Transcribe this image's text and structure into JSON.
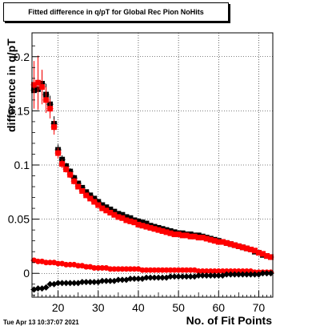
{
  "title": "Fitted difference in q/pT for Global Rec Pion NoHits",
  "timestamp": "Tue Apr 13 10:37:07 2021",
  "chart_data": {
    "type": "scatter",
    "xlabel": "No. of Fit Points",
    "ylabel": "difference in q/pT",
    "xlim": [
      13.5,
      73.5
    ],
    "ylim": [
      -0.022,
      0.222
    ],
    "xticks": [
      20,
      30,
      40,
      50,
      60,
      70
    ],
    "yticks": [
      0,
      0.05,
      0.1,
      0.15,
      0.2
    ],
    "xtick_labels": [
      "20",
      "30",
      "40",
      "50",
      "60",
      "70"
    ],
    "ytick_labels": [
      "0",
      "0.05",
      "0.1",
      "0.15",
      "0.2"
    ],
    "grid": true,
    "series": [
      {
        "color": "#000000",
        "marker": "square",
        "x": [
          14,
          15,
          16,
          17,
          18,
          19,
          20,
          21,
          22,
          23,
          24,
          25,
          26,
          27,
          28,
          29,
          30,
          31,
          32,
          33,
          34,
          35,
          36,
          37,
          38,
          39,
          40,
          41,
          42,
          43,
          44,
          45,
          46,
          47,
          48,
          49,
          50,
          51,
          52,
          53,
          54,
          55,
          56,
          57,
          58,
          59,
          60,
          61,
          62,
          63,
          64,
          65,
          66,
          67,
          68,
          69,
          70,
          71,
          72,
          73
        ],
        "y": [
          0.169,
          0.17,
          0.175,
          0.165,
          0.156,
          0.138,
          0.114,
          0.105,
          0.099,
          0.094,
          0.088,
          0.083,
          0.079,
          0.075,
          0.072,
          0.069,
          0.066,
          0.063,
          0.061,
          0.059,
          0.057,
          0.055,
          0.054,
          0.052,
          0.051,
          0.049,
          0.048,
          0.047,
          0.046,
          0.044,
          0.043,
          0.042,
          0.041,
          0.04,
          0.039,
          0.038,
          0.037,
          0.037,
          0.036,
          0.036,
          0.035,
          0.035,
          0.034,
          0.033,
          0.032,
          0.031,
          0.03,
          0.029,
          0.028,
          0.027,
          0.026,
          0.025,
          0.024,
          0.023,
          0.022,
          0.02,
          0.019,
          0.017,
          0.016,
          0.015
        ],
        "yerr": [
          0.014,
          0.018,
          0.012,
          0.01,
          0.008,
          0.007,
          0.005,
          0.004,
          0.003,
          0.003,
          0.003,
          0.002,
          0.002,
          0.002,
          0.002,
          0.002,
          0.002,
          0.002,
          0.002,
          0.002,
          0.002,
          0.002,
          0.002,
          0.002,
          0.002,
          0.002,
          0.002,
          0.002,
          0.002,
          0.002,
          0.002,
          0.002,
          0.002,
          0.002,
          0.002,
          0.002,
          0.002,
          0.002,
          0.002,
          0.002,
          0.002,
          0.002,
          0.002,
          0.002,
          0.002,
          0.002,
          0.002,
          0.002,
          0.002,
          0.002,
          0.002,
          0.002,
          0.002,
          0.002,
          0.002,
          0.002,
          0.002,
          0.002,
          0.002,
          0.002
        ]
      },
      {
        "color": "#ff0000",
        "marker": "square",
        "x": [
          14,
          15,
          16,
          17,
          18,
          19,
          20,
          21,
          22,
          23,
          24,
          25,
          26,
          27,
          28,
          29,
          30,
          31,
          32,
          33,
          34,
          35,
          36,
          37,
          38,
          39,
          40,
          41,
          42,
          43,
          44,
          45,
          46,
          47,
          48,
          49,
          50,
          51,
          52,
          53,
          54,
          55,
          56,
          57,
          58,
          59,
          60,
          61,
          62,
          63,
          64,
          65,
          66,
          67,
          68,
          69,
          70,
          71,
          72,
          73
        ],
        "y": [
          0.174,
          0.176,
          0.172,
          0.16,
          0.152,
          0.135,
          0.111,
          0.101,
          0.096,
          0.091,
          0.085,
          0.08,
          0.076,
          0.072,
          0.069,
          0.066,
          0.063,
          0.06,
          0.058,
          0.056,
          0.054,
          0.052,
          0.051,
          0.049,
          0.048,
          0.047,
          0.045,
          0.044,
          0.043,
          0.042,
          0.041,
          0.04,
          0.039,
          0.038,
          0.037,
          0.036,
          0.036,
          0.035,
          0.035,
          0.034,
          0.034,
          0.033,
          0.033,
          0.032,
          0.031,
          0.03,
          0.029,
          0.029,
          0.028,
          0.027,
          0.026,
          0.025,
          0.024,
          0.023,
          0.022,
          0.021,
          0.019,
          0.018,
          0.016,
          0.015
        ],
        "yerr": [
          0.022,
          0.025,
          0.016,
          0.012,
          0.009,
          0.007,
          0.005,
          0.004,
          0.003,
          0.003,
          0.003,
          0.002,
          0.002,
          0.002,
          0.002,
          0.002,
          0.002,
          0.002,
          0.002,
          0.002,
          0.002,
          0.002,
          0.002,
          0.002,
          0.002,
          0.002,
          0.002,
          0.002,
          0.002,
          0.002,
          0.002,
          0.002,
          0.002,
          0.002,
          0.002,
          0.002,
          0.002,
          0.002,
          0.002,
          0.002,
          0.002,
          0.002,
          0.002,
          0.002,
          0.002,
          0.002,
          0.002,
          0.002,
          0.002,
          0.002,
          0.002,
          0.002,
          0.002,
          0.002,
          0.002,
          0.002,
          0.002,
          0.002,
          0.002,
          0.002
        ]
      },
      {
        "color": "#ff0000",
        "marker": "circle",
        "x": [
          14,
          15,
          16,
          17,
          18,
          19,
          20,
          21,
          22,
          23,
          24,
          25,
          26,
          27,
          28,
          29,
          30,
          31,
          32,
          33,
          34,
          35,
          36,
          37,
          38,
          39,
          40,
          41,
          42,
          43,
          44,
          45,
          46,
          47,
          48,
          49,
          50,
          51,
          52,
          53,
          54,
          55,
          56,
          57,
          58,
          59,
          60,
          61,
          62,
          63,
          64,
          65,
          66,
          67,
          68,
          69,
          70,
          71,
          72,
          73
        ],
        "y": [
          0.012,
          0.011,
          0.011,
          0.01,
          0.01,
          0.01,
          0.009,
          0.009,
          0.008,
          0.008,
          0.008,
          0.007,
          0.007,
          0.006,
          0.006,
          0.005,
          0.005,
          0.005,
          0.005,
          0.004,
          0.004,
          0.004,
          0.004,
          0.004,
          0.004,
          0.004,
          0.004,
          0.003,
          0.003,
          0.003,
          0.003,
          0.003,
          0.003,
          0.003,
          0.003,
          0.003,
          0.003,
          0.003,
          0.003,
          0.003,
          0.003,
          0.002,
          0.002,
          0.002,
          0.002,
          0.002,
          0.002,
          0.002,
          0.002,
          0.002,
          0.002,
          0.002,
          0.002,
          0.002,
          0.002,
          0.001,
          0.001,
          0.001,
          0.001,
          0.001
        ]
      },
      {
        "color": "#000000",
        "marker": "diamond",
        "x": [
          14,
          15,
          16,
          17,
          18,
          19,
          20,
          21,
          22,
          23,
          24,
          25,
          26,
          27,
          28,
          29,
          30,
          31,
          32,
          33,
          34,
          35,
          36,
          37,
          38,
          39,
          40,
          41,
          42,
          43,
          44,
          45,
          46,
          47,
          48,
          49,
          50,
          51,
          52,
          53,
          54,
          55,
          56,
          57,
          58,
          59,
          60,
          61,
          62,
          63,
          64,
          65,
          66,
          67,
          68,
          69,
          70,
          71,
          72,
          73
        ],
        "y": [
          -0.015,
          -0.014,
          -0.014,
          -0.013,
          -0.01,
          -0.01,
          -0.009,
          -0.009,
          -0.009,
          -0.009,
          -0.009,
          -0.009,
          -0.008,
          -0.008,
          -0.008,
          -0.008,
          -0.008,
          -0.007,
          -0.007,
          -0.007,
          -0.007,
          -0.006,
          -0.006,
          -0.006,
          -0.005,
          -0.005,
          -0.005,
          -0.005,
          -0.004,
          -0.004,
          -0.004,
          -0.004,
          -0.004,
          -0.004,
          -0.003,
          -0.003,
          -0.003,
          -0.003,
          -0.003,
          -0.003,
          -0.003,
          -0.002,
          -0.002,
          -0.002,
          -0.002,
          -0.002,
          -0.002,
          -0.002,
          -0.001,
          -0.001,
          -0.001,
          -0.001,
          -0.001,
          -0.001,
          -0.001,
          -0.001,
          -0.001,
          0.0,
          0.0,
          0.0
        ]
      }
    ]
  }
}
